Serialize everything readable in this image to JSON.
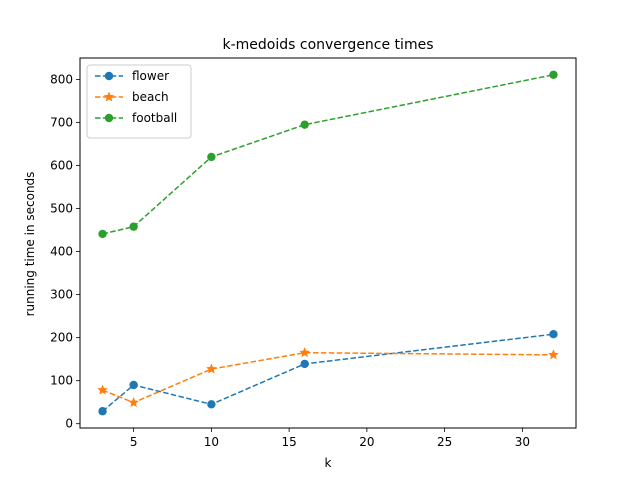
{
  "chart_data": {
    "type": "line",
    "title": "k-medoids convergence times",
    "xlabel": "k",
    "ylabel": "running time in seconds",
    "xlim": [
      1.55,
      33.45
    ],
    "ylim": [
      -10,
      850
    ],
    "xticks": [
      5,
      10,
      15,
      20,
      25,
      30
    ],
    "yticks": [
      0,
      100,
      200,
      300,
      400,
      500,
      600,
      700,
      800
    ],
    "x": [
      3,
      5,
      10,
      16,
      32
    ],
    "grid": false,
    "legend_position": "top-left",
    "series": [
      {
        "name": "flower",
        "color": "#1f77b4",
        "marker": "circle",
        "linestyle": "dashed",
        "values": [
          29,
          90,
          45,
          139,
          208
        ]
      },
      {
        "name": "beach",
        "color": "#ff7f0e",
        "marker": "star",
        "linestyle": "dashed",
        "values": [
          78,
          49,
          127,
          165,
          160
        ]
      },
      {
        "name": "football",
        "color": "#2ca02c",
        "marker": "circle",
        "linestyle": "dashed",
        "values": [
          441,
          458,
          620,
          695,
          811
        ]
      }
    ]
  }
}
